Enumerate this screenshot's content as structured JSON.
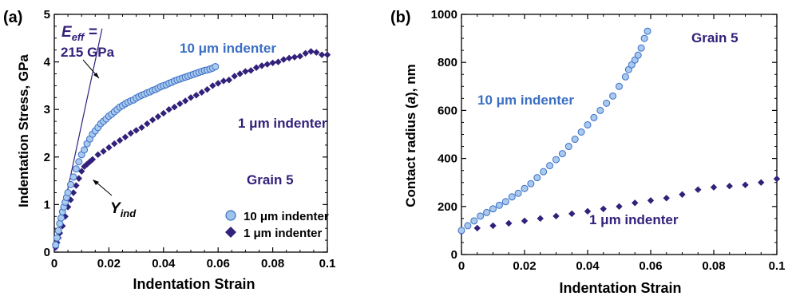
{
  "chart_data": [
    {
      "panel_label": "(a)",
      "type": "scatter",
      "xlabel": "Indentation Strain",
      "ylabel": "Indentation Stress, GPa",
      "xlim": [
        0,
        0.1
      ],
      "ylim": [
        0,
        5
      ],
      "x_ticks": [
        "0",
        "0.02",
        "0.04",
        "0.06",
        "0.08",
        "0.1"
      ],
      "y_ticks": [
        "0",
        "1",
        "2",
        "3",
        "4",
        "5"
      ],
      "grid": false,
      "legend_position": "bottom-right",
      "colors": {
        "series_10um": "#5b9bd5",
        "series_1um": "#33207a",
        "text_10um": "#3a6fc4",
        "text_1um": "#33207a"
      },
      "annotations": {
        "eeff_prefix": "E",
        "eeff_sub": "eff",
        "eeff_suffix": " =",
        "eeff_value": "215 GPa",
        "yind_main": "Y",
        "yind_sub": "ind",
        "grain": "Grain 5",
        "label_10um": "10 μm indenter",
        "label_1um": "1 μm indenter"
      },
      "modulus_line": {
        "x": [
          0,
          0.0175
        ],
        "y": [
          0,
          4.7
        ]
      },
      "yind_point": {
        "x": 0.0105,
        "y": 1.8
      },
      "series": [
        {
          "name": "10 μm indenter",
          "marker": "circle",
          "x": [
            0.0005,
            0.001,
            0.0015,
            0.002,
            0.0025,
            0.003,
            0.0035,
            0.004,
            0.0045,
            0.005,
            0.006,
            0.007,
            0.008,
            0.009,
            0.01,
            0.011,
            0.012,
            0.013,
            0.014,
            0.015,
            0.016,
            0.017,
            0.018,
            0.019,
            0.02,
            0.021,
            0.022,
            0.023,
            0.024,
            0.025,
            0.026,
            0.027,
            0.028,
            0.029,
            0.03,
            0.031,
            0.032,
            0.033,
            0.034,
            0.035,
            0.036,
            0.037,
            0.038,
            0.039,
            0.04,
            0.041,
            0.042,
            0.043,
            0.044,
            0.045,
            0.046,
            0.047,
            0.048,
            0.049,
            0.05,
            0.051,
            0.052,
            0.053,
            0.054,
            0.055,
            0.056,
            0.057,
            0.058,
            0.059
          ],
          "y": [
            0.15,
            0.3,
            0.45,
            0.6,
            0.72,
            0.85,
            0.95,
            1.05,
            1.15,
            1.25,
            1.42,
            1.58,
            1.75,
            1.9,
            2.05,
            2.15,
            2.28,
            2.38,
            2.48,
            2.55,
            2.62,
            2.7,
            2.75,
            2.8,
            2.86,
            2.9,
            2.95,
            3.0,
            3.05,
            3.08,
            3.12,
            3.15,
            3.18,
            3.2,
            3.24,
            3.27,
            3.3,
            3.32,
            3.35,
            3.37,
            3.4,
            3.42,
            3.45,
            3.48,
            3.5,
            3.52,
            3.55,
            3.57,
            3.6,
            3.62,
            3.64,
            3.66,
            3.68,
            3.7,
            3.72,
            3.74,
            3.76,
            3.78,
            3.8,
            3.82,
            3.83,
            3.85,
            3.87,
            3.9
          ]
        },
        {
          "name": "1 μm indenter",
          "marker": "diamond",
          "x": [
            0.0005,
            0.001,
            0.0015,
            0.002,
            0.003,
            0.004,
            0.005,
            0.006,
            0.007,
            0.008,
            0.009,
            0.01,
            0.011,
            0.012,
            0.013,
            0.014,
            0.016,
            0.018,
            0.02,
            0.022,
            0.024,
            0.026,
            0.028,
            0.03,
            0.032,
            0.034,
            0.036,
            0.038,
            0.04,
            0.042,
            0.044,
            0.046,
            0.048,
            0.05,
            0.052,
            0.054,
            0.056,
            0.058,
            0.06,
            0.062,
            0.064,
            0.066,
            0.068,
            0.07,
            0.072,
            0.074,
            0.076,
            0.078,
            0.08,
            0.082,
            0.084,
            0.086,
            0.088,
            0.09,
            0.092,
            0.094,
            0.096,
            0.098,
            0.1
          ],
          "y": [
            0.1,
            0.2,
            0.3,
            0.4,
            0.55,
            0.75,
            0.95,
            1.1,
            1.25,
            1.4,
            1.55,
            1.7,
            1.8,
            1.85,
            1.9,
            1.95,
            2.05,
            2.12,
            2.2,
            2.28,
            2.35,
            2.42,
            2.5,
            2.56,
            2.62,
            2.7,
            2.78,
            2.85,
            2.92,
            3.0,
            3.05,
            3.12,
            3.18,
            3.25,
            3.3,
            3.36,
            3.42,
            3.5,
            3.55,
            3.6,
            3.62,
            3.7,
            3.75,
            3.8,
            3.82,
            3.88,
            3.92,
            3.95,
            3.98,
            4.0,
            4.05,
            4.08,
            4.1,
            4.12,
            4.18,
            4.22,
            4.2,
            4.15,
            4.15
          ]
        }
      ]
    },
    {
      "panel_label": "(b)",
      "type": "scatter",
      "xlabel": "Indentation Strain",
      "ylabel_prefix": "Contact radius (",
      "ylabel_var": "a",
      "ylabel_suffix": "), nm",
      "xlim": [
        0,
        0.1
      ],
      "ylim": [
        0,
        1000
      ],
      "x_ticks": [
        "0",
        "0.02",
        "0.04",
        "0.06",
        "0.08",
        "0.1"
      ],
      "y_ticks": [
        "0",
        "200",
        "400",
        "600",
        "800",
        "1000"
      ],
      "grid": false,
      "annotations": {
        "grain": "Grain 5",
        "label_10um": "10 μm indenter",
        "label_1um": "1 μm indenter"
      },
      "series": [
        {
          "name": "10 μm indenter",
          "marker": "circle",
          "x": [
            0.0,
            0.002,
            0.004,
            0.006,
            0.008,
            0.01,
            0.012,
            0.014,
            0.016,
            0.018,
            0.02,
            0.022,
            0.024,
            0.026,
            0.028,
            0.03,
            0.032,
            0.034,
            0.036,
            0.038,
            0.04,
            0.042,
            0.044,
            0.046,
            0.048,
            0.05,
            0.052,
            0.053,
            0.054,
            0.055,
            0.056,
            0.057,
            0.058,
            0.059
          ],
          "y": [
            100,
            120,
            140,
            160,
            175,
            190,
            205,
            220,
            240,
            255,
            275,
            295,
            320,
            345,
            370,
            395,
            420,
            450,
            480,
            510,
            540,
            570,
            600,
            630,
            660,
            700,
            740,
            770,
            790,
            810,
            830,
            860,
            900,
            930
          ]
        },
        {
          "name": "1 μm indenter",
          "marker": "diamond",
          "x": [
            0.0,
            0.005,
            0.01,
            0.015,
            0.02,
            0.025,
            0.03,
            0.035,
            0.04,
            0.045,
            0.05,
            0.055,
            0.06,
            0.065,
            0.07,
            0.075,
            0.08,
            0.085,
            0.09,
            0.095,
            0.1
          ],
          "y": [
            95,
            110,
            120,
            130,
            140,
            150,
            160,
            170,
            180,
            190,
            200,
            215,
            225,
            235,
            250,
            270,
            280,
            285,
            290,
            300,
            315
          ]
        }
      ]
    }
  ]
}
